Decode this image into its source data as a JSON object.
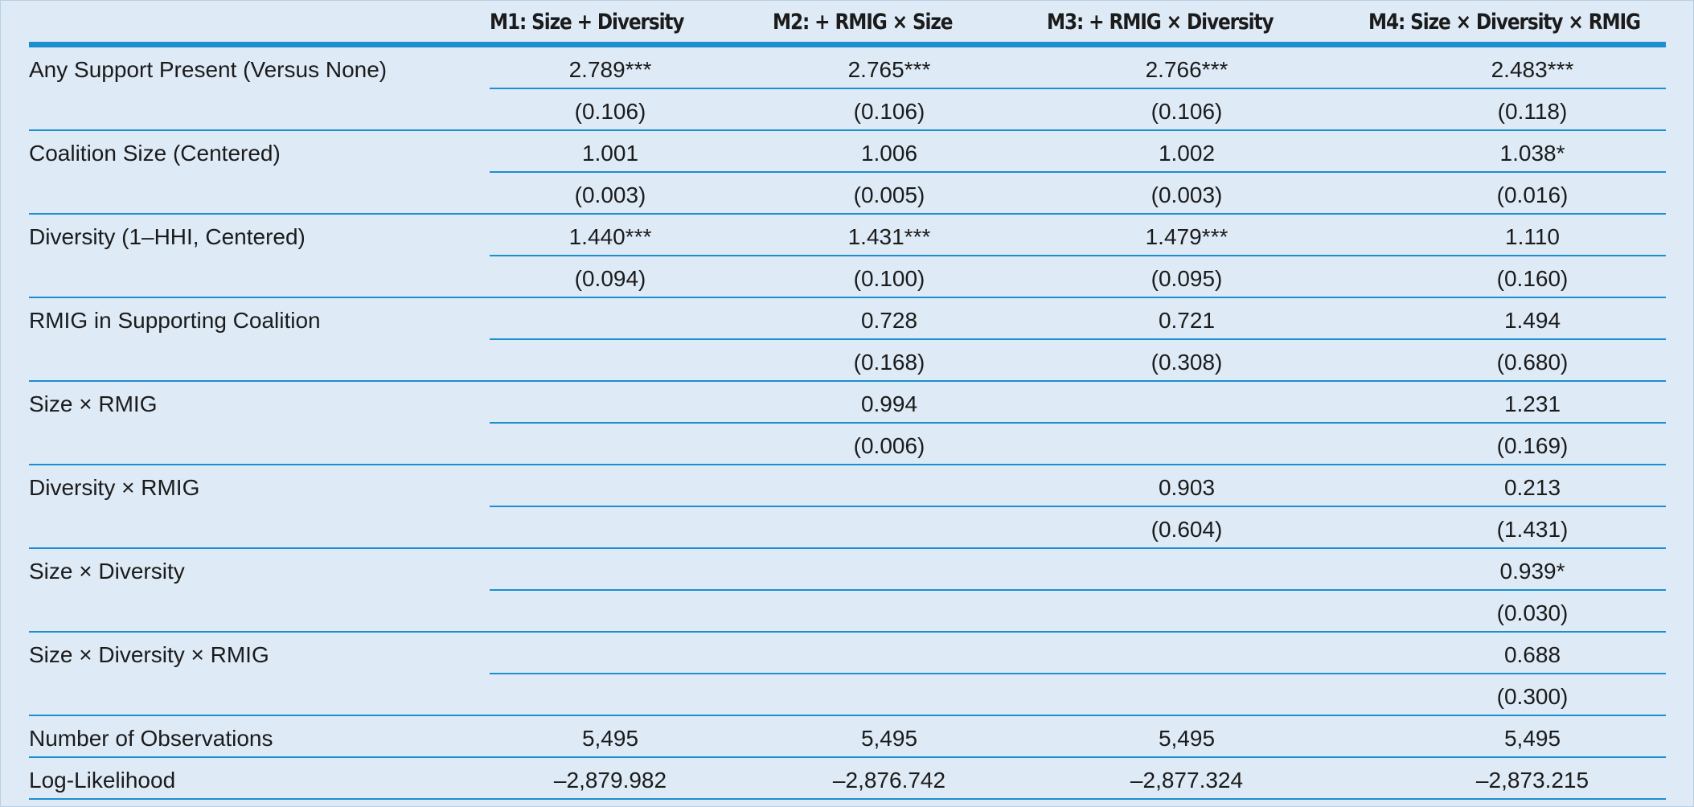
{
  "columns": [
    "M1: Size + Diversity",
    "M2: + RMIG × Size",
    "M3: + RMIG × Diversity",
    "M4: Size × Diversity × RMIG"
  ],
  "rows": [
    {
      "label": "Any Support Present (Versus None)",
      "coef": [
        "2.789***",
        "2.765***",
        "2.766***",
        "2.483***"
      ],
      "se": [
        "(0.106)",
        "(0.106)",
        "(0.106)",
        "(0.118)"
      ]
    },
    {
      "label": "Coalition Size (Centered)",
      "coef": [
        "1.001",
        "1.006",
        "1.002",
        "1.038*"
      ],
      "se": [
        "(0.003)",
        "(0.005)",
        "(0.003)",
        "(0.016)"
      ]
    },
    {
      "label": "Diversity (1–HHI, Centered)",
      "coef": [
        "1.440***",
        "1.431***",
        "1.479***",
        "1.110"
      ],
      "se": [
        "(0.094)",
        "(0.100)",
        "(0.095)",
        "(0.160)"
      ]
    },
    {
      "label": "RMIG in Supporting Coalition",
      "coef": [
        "",
        "0.728",
        "0.721",
        "1.494"
      ],
      "se": [
        "",
        "(0.168)",
        "(0.308)",
        "(0.680)"
      ]
    },
    {
      "label": "Size × RMIG",
      "coef": [
        "",
        "0.994",
        "",
        "1.231"
      ],
      "se": [
        "",
        "(0.006)",
        "",
        "(0.169)"
      ]
    },
    {
      "label": "Diversity × RMIG",
      "coef": [
        "",
        "",
        "0.903",
        "0.213"
      ],
      "se": [
        "",
        "",
        "(0.604)",
        "(1.431)"
      ]
    },
    {
      "label": "Size × Diversity",
      "coef": [
        "",
        "",
        "",
        "0.939*"
      ],
      "se": [
        "",
        "",
        "",
        "(0.030)"
      ]
    },
    {
      "label": "Size × Diversity × RMIG",
      "coef": [
        "",
        "",
        "",
        "0.688"
      ],
      "se": [
        "",
        "",
        "",
        "(0.300)"
      ]
    }
  ],
  "footer": [
    {
      "label": "Number of Observations",
      "values": [
        "5,495",
        "5,495",
        "5,495",
        "5,495"
      ]
    },
    {
      "label": "Log-Likelihood",
      "values": [
        "–2,879.982",
        "–2,876.742",
        "–2,877.324",
        "–2,873.215"
      ]
    }
  ]
}
